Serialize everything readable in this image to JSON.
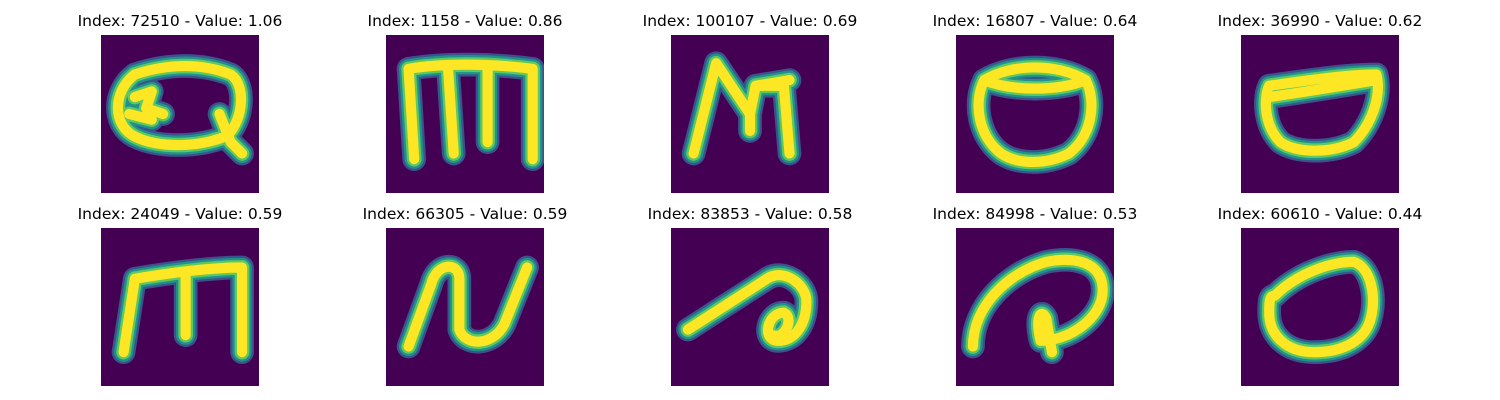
{
  "colors": {
    "background": "#440154",
    "stroke_core": "#fde725",
    "stroke_mid": "#5ec962",
    "stroke_edge": "#21918c",
    "stroke_fringe": "#3b528b"
  },
  "panels": [
    {
      "title": "Index: 72510 - Value: 1.06"
    },
    {
      "title": "Index: 1158 - Value: 0.86"
    },
    {
      "title": "Index: 100107 - Value: 0.69"
    },
    {
      "title": "Index: 16807 - Value: 0.64"
    },
    {
      "title": "Index: 36990 - Value: 0.62"
    },
    {
      "title": "Index: 24049 - Value: 0.59"
    },
    {
      "title": "Index: 66305 - Value: 0.59"
    },
    {
      "title": "Index: 83853 - Value: 0.58"
    },
    {
      "title": "Index: 84998 - Value: 0.53"
    },
    {
      "title": "Index: 60610 - Value: 0.44"
    }
  ]
}
